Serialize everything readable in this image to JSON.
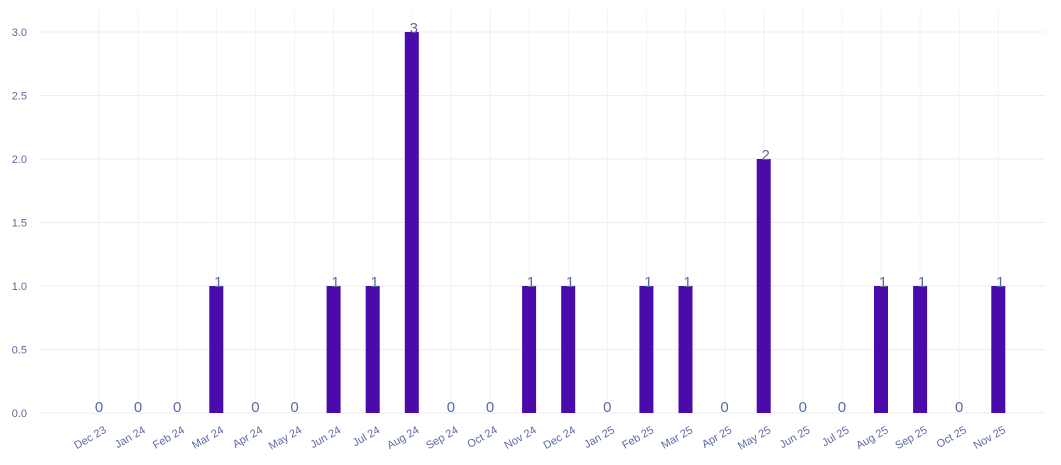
{
  "chart_data": {
    "type": "bar",
    "title": "",
    "xlabel": "",
    "ylabel": "",
    "categories": [
      "Dec 23",
      "Jan 24",
      "Feb 24",
      "Mar 24",
      "Apr 24",
      "May 24",
      "Jun 24",
      "Jul 24",
      "Aug 24",
      "Sep 24",
      "Oct 24",
      "Nov 24",
      "Dec 24",
      "Jan 25",
      "Feb 25",
      "Mar 25",
      "Apr 25",
      "May 25",
      "Jun 25",
      "Jul 25",
      "Aug 25",
      "Sep 25",
      "Oct 25",
      "Nov 25"
    ],
    "values": [
      0,
      0,
      0,
      1,
      0,
      0,
      1,
      1,
      3,
      0,
      0,
      1,
      1,
      0,
      1,
      1,
      0,
      2,
      0,
      0,
      1,
      1,
      0,
      1
    ],
    "ylim": [
      0,
      3
    ],
    "yticks": [
      "0.0",
      "0.5",
      "1.0",
      "1.5",
      "2.0",
      "2.5",
      "3.0"
    ],
    "grid": true,
    "legend": "none",
    "bar_color": "#4b0aaa",
    "label_color": "#5a6aa3",
    "grid_color": "#eeeeee"
  }
}
